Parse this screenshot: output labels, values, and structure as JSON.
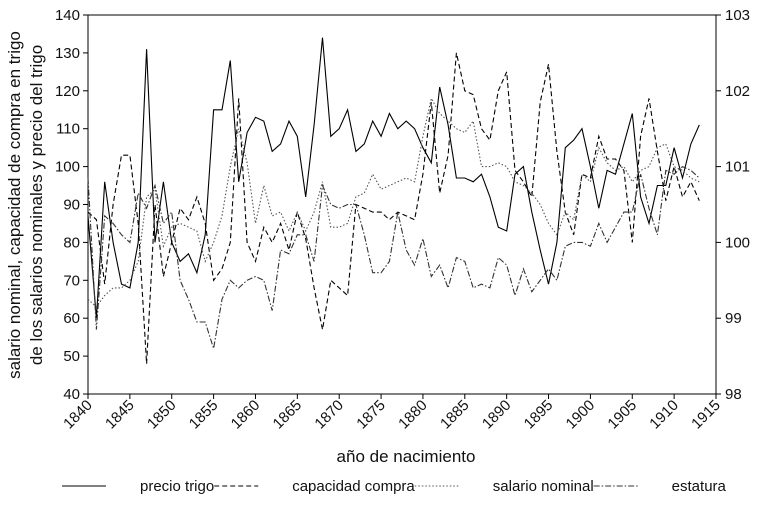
{
  "chart_data": {
    "type": "line",
    "x": [
      1840,
      1841,
      1842,
      1843,
      1844,
      1845,
      1846,
      1847,
      1848,
      1849,
      1850,
      1851,
      1852,
      1853,
      1854,
      1855,
      1856,
      1857,
      1858,
      1859,
      1860,
      1861,
      1862,
      1863,
      1864,
      1865,
      1866,
      1867,
      1868,
      1869,
      1870,
      1871,
      1872,
      1873,
      1874,
      1875,
      1876,
      1877,
      1878,
      1879,
      1880,
      1881,
      1882,
      1883,
      1884,
      1885,
      1886,
      1887,
      1888,
      1889,
      1890,
      1891,
      1892,
      1893,
      1894,
      1895,
      1896,
      1897,
      1898,
      1899,
      1900,
      1901,
      1902,
      1903,
      1904,
      1905,
      1906,
      1907,
      1908,
      1909,
      1910,
      1911,
      1912,
      1913
    ],
    "series": [
      {
        "name": "precio trigo",
        "color": "#000000",
        "dash": "none",
        "values": [
          87,
          60,
          96,
          80,
          69,
          68,
          80,
          131,
          80,
          96,
          80,
          75,
          77,
          72,
          82,
          115,
          115,
          128,
          96,
          109,
          113,
          112,
          104,
          106,
          112,
          108,
          92,
          111,
          134,
          108,
          110,
          115,
          104,
          106,
          112,
          108,
          114,
          110,
          112,
          110,
          105,
          101,
          121,
          111,
          97,
          97,
          96,
          98,
          92,
          84,
          83,
          98,
          100,
          88,
          78,
          69,
          80,
          105,
          107,
          110,
          100,
          89,
          99,
          98,
          106,
          114,
          92,
          85,
          95,
          95,
          105,
          97,
          106,
          111
        ]
      },
      {
        "name": "capacidad compra",
        "color": "#000000",
        "dash": "5 3",
        "values": [
          88,
          86,
          69,
          90,
          103,
          103,
          85,
          48,
          90,
          71,
          80,
          89,
          86,
          92,
          85,
          70,
          73,
          80,
          118,
          80,
          75,
          84,
          80,
          85,
          78,
          88,
          81,
          68,
          57,
          70,
          68,
          66,
          90,
          89,
          88,
          88,
          86,
          88,
          87,
          86,
          98,
          117,
          93,
          103,
          130,
          120,
          119,
          110,
          107,
          120,
          125,
          99,
          96,
          92,
          117,
          127,
          104,
          88,
          82,
          98,
          97,
          108,
          102,
          102,
          99,
          80,
          108,
          118,
          104,
          91,
          100,
          92,
          96,
          91
        ]
      },
      {
        "name": "salario nominal",
        "color": "#555555",
        "dash": "1.5 2",
        "values": [
          65,
          63,
          66,
          68,
          68,
          70,
          75,
          92,
          94,
          79,
          84,
          85,
          84,
          83,
          75,
          80,
          87,
          100,
          110,
          101,
          85,
          95,
          87,
          88,
          83,
          88,
          83,
          88,
          96,
          84,
          84,
          85,
          92,
          93,
          98,
          94,
          95,
          96,
          97,
          96,
          108,
          118,
          114,
          112,
          110,
          109,
          112,
          100,
          100,
          101,
          100,
          96,
          95,
          93,
          90,
          85,
          82,
          88,
          86,
          98,
          96,
          105,
          101,
          99,
          100,
          96,
          99,
          100,
          105,
          106,
          100,
          99,
          97,
          96
        ]
      },
      {
        "name": "estatura",
        "color": "#333333",
        "dash": "6 2 1.5 2",
        "axis": "y2",
        "values": [
          100.85,
          98.85,
          100.35,
          100.25,
          100.1,
          100.0,
          100.65,
          100.45,
          100.75,
          100.25,
          100.4,
          99.5,
          99.25,
          98.95,
          98.95,
          98.6,
          99.25,
          99.5,
          99.4,
          99.5,
          99.55,
          99.5,
          99.1,
          99.9,
          99.85,
          100.1,
          100.1,
          99.75,
          100.75,
          100.5,
          100.45,
          100.5,
          100.5,
          100.1,
          99.6,
          99.6,
          99.75,
          100.4,
          99.9,
          99.7,
          100.05,
          99.55,
          99.7,
          99.4,
          99.8,
          99.75,
          99.4,
          99.45,
          99.4,
          99.8,
          99.7,
          99.3,
          99.65,
          99.35,
          99.5,
          99.65,
          99.5,
          99.95,
          100.0,
          100.0,
          99.95,
          100.25,
          100.0,
          100.2,
          100.4,
          100.4,
          100.9,
          100.45,
          100.1,
          100.95,
          100.9,
          101.0,
          100.95,
          100.85
        ]
      }
    ],
    "xlabel": "año de nacimiento",
    "ylabel": [
      "salario nominal, capacidad de compra en trigo",
      "de los salarios nominales y precio del trigo"
    ],
    "xlim": [
      1840,
      1915
    ],
    "xticks": [
      1840,
      1845,
      1850,
      1855,
      1860,
      1865,
      1870,
      1875,
      1880,
      1885,
      1890,
      1895,
      1900,
      1905,
      1910,
      1915
    ],
    "ylim": [
      40,
      140
    ],
    "yticks": [
      40,
      50,
      60,
      70,
      80,
      90,
      100,
      110,
      120,
      130,
      140
    ],
    "y2lim": [
      98,
      103
    ],
    "y2ticks": [
      98,
      99,
      100,
      101,
      102,
      103
    ],
    "legend": "bottom"
  }
}
